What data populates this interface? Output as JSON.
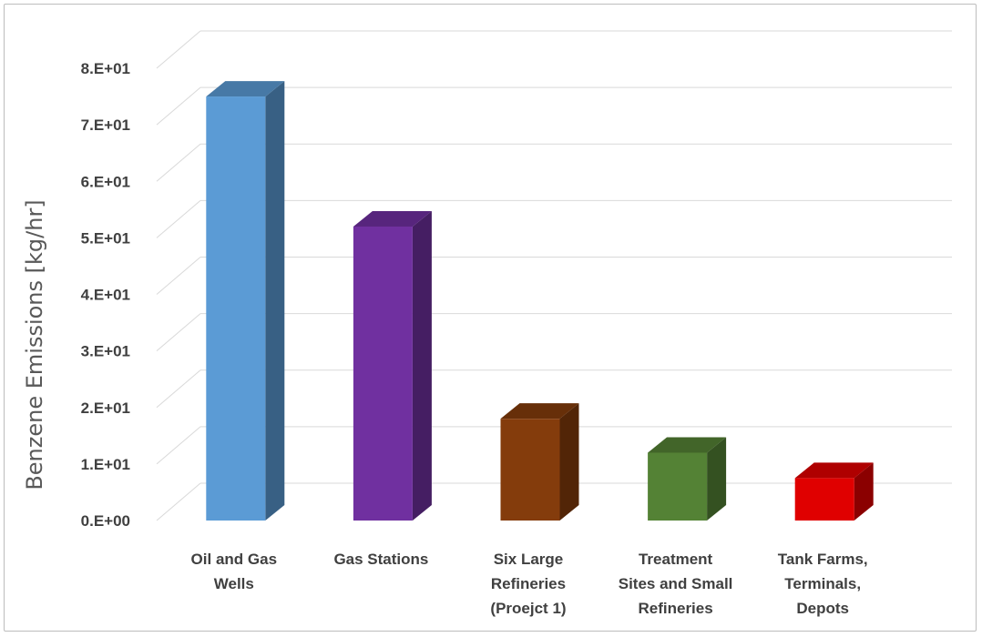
{
  "chart_data": {
    "type": "bar",
    "style": "3d-column",
    "title": "",
    "xlabel": "",
    "ylabel": "Benzene Emissions [kg/hr]",
    "ylim": [
      0,
      80
    ],
    "yticks": [
      0,
      10,
      20,
      30,
      40,
      50,
      60,
      70,
      80
    ],
    "ytick_labels": [
      "0.E+00",
      "1.E+01",
      "2.E+01",
      "3.E+01",
      "4.E+01",
      "5.E+01",
      "6.E+01",
      "7.E+01",
      "8.E+01"
    ],
    "grid": true,
    "legend": "none",
    "categories": [
      [
        "Oil and Gas",
        "Wells"
      ],
      [
        "Gas Stations"
      ],
      [
        "Six Large",
        "Refineries",
        "(Proejct 1)"
      ],
      [
        "Treatment",
        "Sites and Small",
        "Refineries"
      ],
      [
        "Tank Farms,",
        "Terminals,",
        "Depots"
      ]
    ],
    "values": [
      75,
      52,
      18,
      12,
      7.5
    ],
    "colors": [
      "#5b9bd5",
      "#7030a0",
      "#843c0c",
      "#548235",
      "#e00000"
    ]
  }
}
